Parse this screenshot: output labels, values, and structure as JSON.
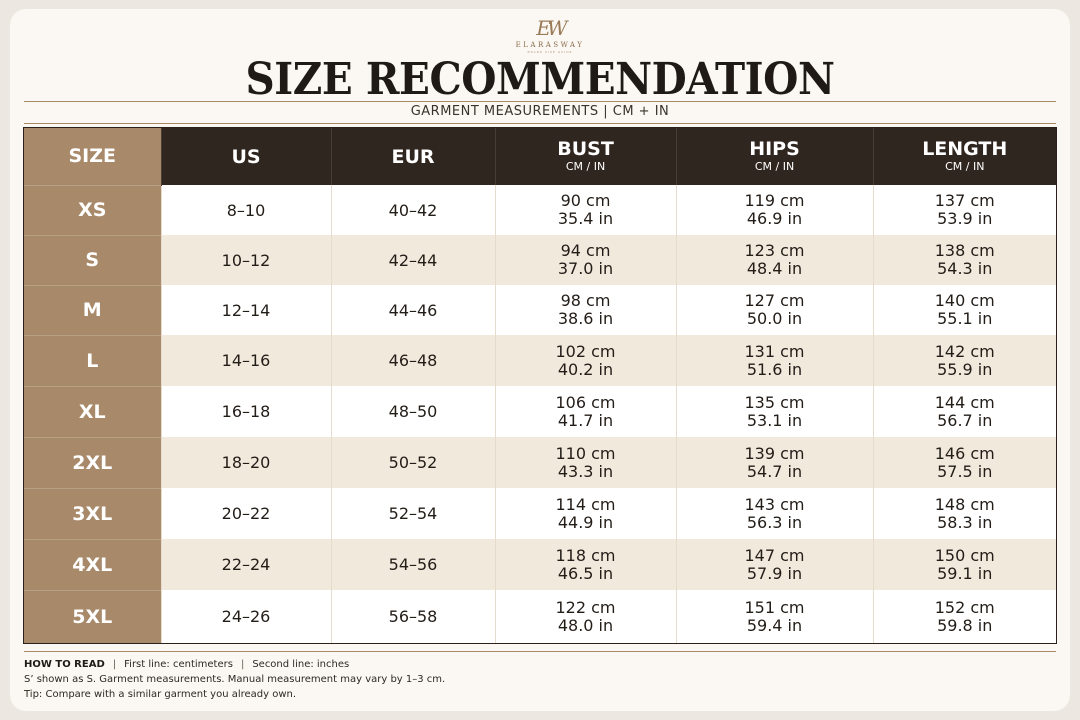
{
  "brand": {
    "monogram": "EW",
    "name": "ELARASWAY",
    "tagline": "BRAND SIZE GUIDE"
  },
  "title": "SIZE RECOMMENDATION",
  "subtitle": "GARMENT MEASUREMENTS | CM + IN",
  "table": {
    "headers": {
      "size": "SIZE",
      "us": "US",
      "eur": "EUR",
      "bust": "BUST",
      "bust_unit": "CM / IN",
      "hips": "HIPS",
      "hips_unit": "CM / IN",
      "length": "LENGTH",
      "length_unit": "CM / IN"
    },
    "rows": [
      {
        "size": "XS",
        "us": "8–10",
        "eur": "40–42",
        "bust_cm": "90 cm",
        "bust_in": "35.4 in",
        "hips_cm": "119 cm",
        "hips_in": "46.9 in",
        "length_cm": "137 cm",
        "length_in": "53.9 in"
      },
      {
        "size": "S",
        "us": "10–12",
        "eur": "42–44",
        "bust_cm": "94 cm",
        "bust_in": "37.0 in",
        "hips_cm": "123 cm",
        "hips_in": "48.4 in",
        "length_cm": "138 cm",
        "length_in": "54.3 in"
      },
      {
        "size": "M",
        "us": "12–14",
        "eur": "44–46",
        "bust_cm": "98 cm",
        "bust_in": "38.6 in",
        "hips_cm": "127 cm",
        "hips_in": "50.0 in",
        "length_cm": "140 cm",
        "length_in": "55.1 in"
      },
      {
        "size": "L",
        "us": "14–16",
        "eur": "46–48",
        "bust_cm": "102 cm",
        "bust_in": "40.2 in",
        "hips_cm": "131 cm",
        "hips_in": "51.6 in",
        "length_cm": "142 cm",
        "length_in": "55.9 in"
      },
      {
        "size": "XL",
        "us": "16–18",
        "eur": "48–50",
        "bust_cm": "106 cm",
        "bust_in": "41.7 in",
        "hips_cm": "135 cm",
        "hips_in": "53.1 in",
        "length_cm": "144 cm",
        "length_in": "56.7 in"
      },
      {
        "size": "2XL",
        "us": "18–20",
        "eur": "50–52",
        "bust_cm": "110 cm",
        "bust_in": "43.3 in",
        "hips_cm": "139 cm",
        "hips_in": "54.7 in",
        "length_cm": "146 cm",
        "length_in": "57.5 in"
      },
      {
        "size": "3XL",
        "us": "20–22",
        "eur": "52–54",
        "bust_cm": "114 cm",
        "bust_in": "44.9 in",
        "hips_cm": "143 cm",
        "hips_in": "56.3 in",
        "length_cm": "148 cm",
        "length_in": "58.3 in"
      },
      {
        "size": "4XL",
        "us": "22–24",
        "eur": "54–56",
        "bust_cm": "118 cm",
        "bust_in": "46.5 in",
        "hips_cm": "147 cm",
        "hips_in": "57.9 in",
        "length_cm": "150 cm",
        "length_in": "59.1 in"
      },
      {
        "size": "5XL",
        "us": "24–26",
        "eur": "56–58",
        "bust_cm": "122 cm",
        "bust_in": "48.0 in",
        "hips_cm": "151 cm",
        "hips_in": "59.4 in",
        "length_cm": "152 cm",
        "length_in": "59.8 in"
      }
    ]
  },
  "notes": {
    "how_to_read_label": "HOW TO READ",
    "first_line": "First line: centimeters",
    "second_line": "Second line: inches",
    "line2": "S’ shown as S. Garment measurements. Manual measurement may vary by 1–3 cm.",
    "line3": "Tip: Compare with a similar garment you already own."
  },
  "colors": {
    "header_dark": "#302620",
    "size_column": "#a88a6b",
    "row_alt": "#f1e9dc",
    "accent_rule": "#a88a66"
  }
}
